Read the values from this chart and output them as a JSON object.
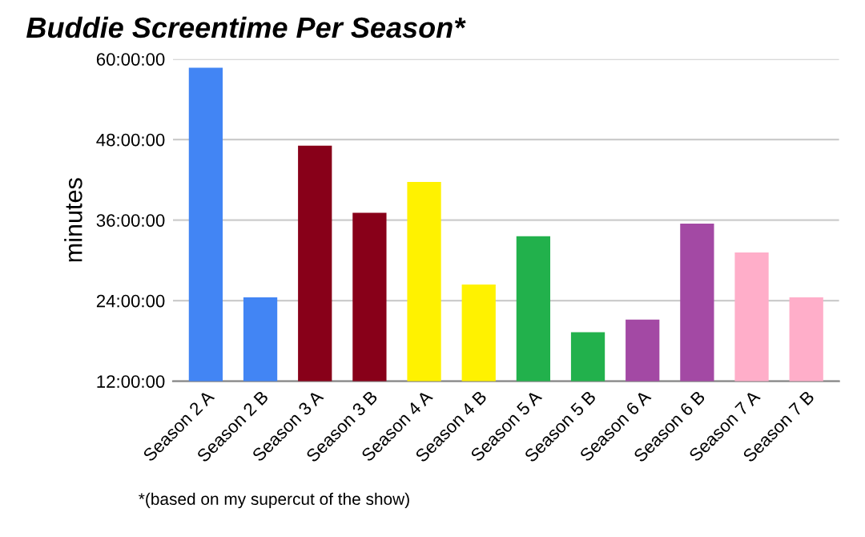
{
  "chart_data": {
    "type": "bar",
    "title": "Buddie Screentime Per Season*",
    "ylabel": "minutes",
    "categories": [
      "Season 2 A",
      "Season 2 B",
      "Season 3 A",
      "Season 3 B",
      "Season 4 A",
      "Season 4 B",
      "Season 5 A",
      "Season 5 B",
      "Season 6 A",
      "Season 6 B",
      "Season 7 A",
      "Season 7 B"
    ],
    "values": [
      58.7,
      24.5,
      47.1,
      37.1,
      41.7,
      26.4,
      33.6,
      19.3,
      21.2,
      35.5,
      31.2,
      24.5
    ],
    "colors": [
      "#4285f4",
      "#4285f4",
      "#880019",
      "#880019",
      "#fff200",
      "#fff200",
      "#22b14c",
      "#22b14c",
      "#a349a4",
      "#a349a4",
      "#ffaec9",
      "#ffaec9"
    ],
    "ylim": [
      12,
      60
    ],
    "yticks": [
      {
        "value": 12,
        "label": "12:00:00"
      },
      {
        "value": 24,
        "label": "24:00:00"
      },
      {
        "value": 36,
        "label": "36:00:00"
      },
      {
        "value": 48,
        "label": "48:00:00"
      },
      {
        "value": 60,
        "label": "60:00:00"
      }
    ],
    "grid": "y",
    "legend": false,
    "annotations": [
      "*(based on my supercut of the show)"
    ]
  }
}
